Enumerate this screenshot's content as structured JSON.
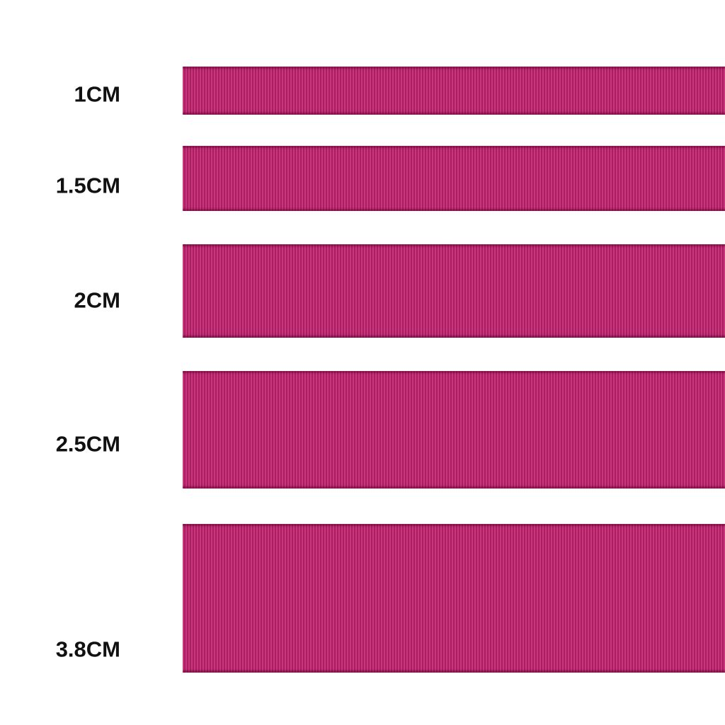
{
  "labels": [
    "1CM",
    "1.5CM",
    "2CM",
    "2.5CM",
    "3.8CM"
  ]
}
